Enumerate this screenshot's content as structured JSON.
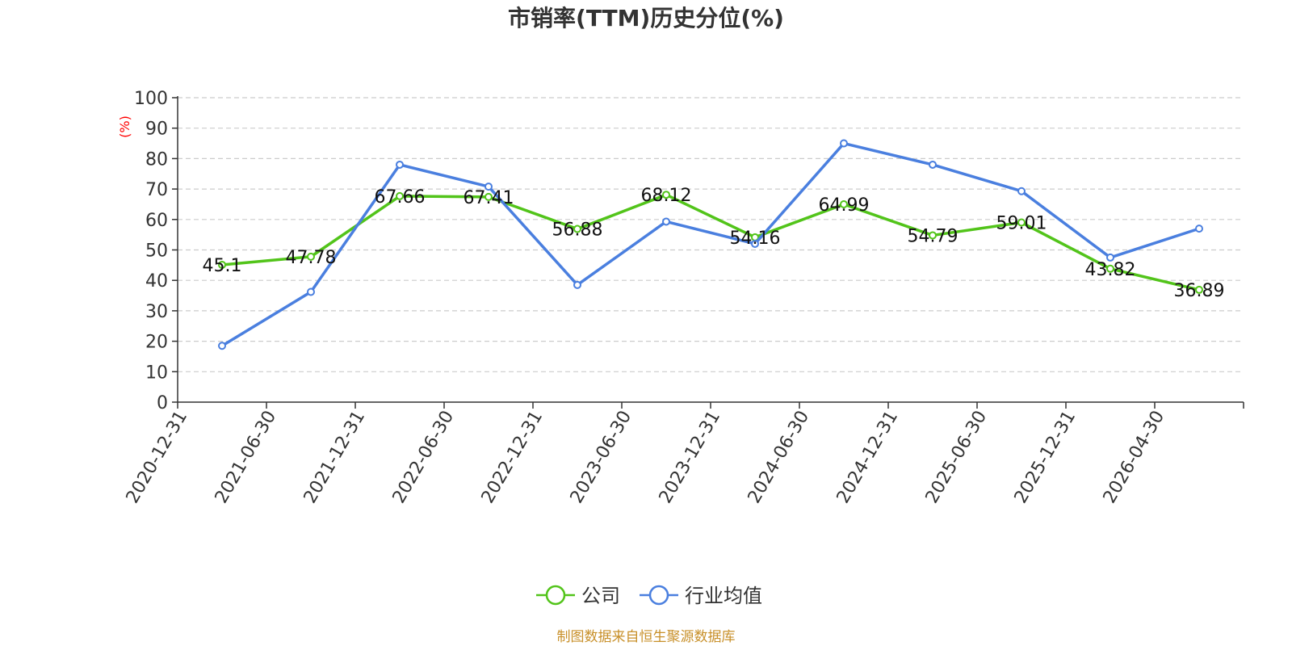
{
  "chart_data": {
    "type": "line",
    "title": "市销率(TTM)历史分位(%)",
    "ylabel": "(%)",
    "xlabel": "",
    "ylim": [
      0,
      100
    ],
    "yticks": [
      0,
      10,
      20,
      30,
      40,
      50,
      60,
      70,
      80,
      90,
      100
    ],
    "grid": true,
    "legend_position": "bottom",
    "categories": [
      "2020-12-31",
      "2021-06-30",
      "2021-12-31",
      "2022-06-30",
      "2022-12-31",
      "2023-06-30",
      "2023-12-31",
      "2024-06-30",
      "2024-12-31",
      "2025-06-30",
      "2025-12-31",
      "2026-04-30"
    ],
    "series": [
      {
        "name": "公司",
        "color": "#52c41a",
        "values": [
          45.1,
          47.78,
          67.66,
          67.41,
          56.88,
          68.12,
          54.16,
          64.99,
          54.79,
          59.01,
          43.82,
          36.89
        ],
        "data_labels": [
          "45.1",
          "47.78",
          "67.66",
          "67.41",
          "56.88",
          "68.12",
          "54.16",
          "64.99",
          "54.79",
          "59.01",
          "43.82",
          "36.89"
        ]
      },
      {
        "name": "行业均值",
        "color": "#4a7fdf",
        "values": [
          18.5,
          36.2,
          78.0,
          70.8,
          38.5,
          59.3,
          52.0,
          85.0,
          78.0,
          69.3,
          47.5,
          57.0
        ]
      }
    ],
    "source": "制图数据来自恒生聚源数据库"
  }
}
